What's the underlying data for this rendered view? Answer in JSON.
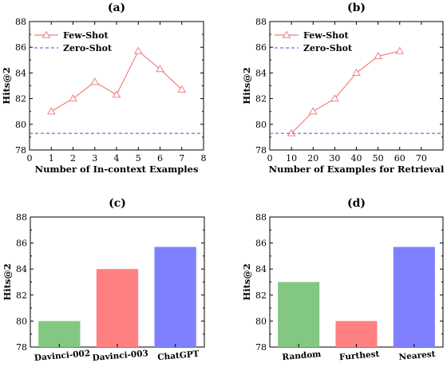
{
  "chart_data": [
    {
      "id": "a",
      "type": "line",
      "title": "(a)",
      "xlabel": "Number of In-context Examples",
      "ylabel": "Hits@2",
      "xlim": [
        0,
        8
      ],
      "ylim": [
        78,
        88
      ],
      "xticks": [
        0,
        1,
        2,
        3,
        4,
        5,
        6,
        7,
        8
      ],
      "yticks": [
        78,
        80,
        82,
        84,
        86,
        88
      ],
      "legend_position": "top-left",
      "series": [
        {
          "name": "Few-Shot",
          "style": "solid",
          "marker": "triangle",
          "color": "#f08080",
          "x": [
            1,
            2,
            3,
            4,
            5,
            6,
            7
          ],
          "y": [
            81.0,
            82.0,
            83.3,
            82.3,
            85.7,
            84.3,
            82.7
          ]
        },
        {
          "name": "Zero-Shot",
          "style": "dashed",
          "color": "#4a4ad6",
          "y_const": 79.3
        }
      ]
    },
    {
      "id": "b",
      "type": "line",
      "title": "(b)",
      "xlabel": "Number of Examples for Retrieval",
      "ylabel": "Hits@2",
      "xlim": [
        0,
        80
      ],
      "ylim": [
        78,
        88
      ],
      "xticks": [
        0,
        10,
        20,
        30,
        40,
        50,
        60,
        70
      ],
      "yticks": [
        78,
        80,
        82,
        84,
        86,
        88
      ],
      "legend_position": "top-left",
      "series": [
        {
          "name": "Few-Shot",
          "style": "solid",
          "marker": "triangle",
          "color": "#f08080",
          "x": [
            10,
            20,
            30,
            40,
            50,
            60
          ],
          "y": [
            79.3,
            81.0,
            82.0,
            84.0,
            85.3,
            85.7
          ]
        },
        {
          "name": "Zero-Shot",
          "style": "dashed",
          "color": "#4a4ad6",
          "y_const": 79.3
        }
      ]
    },
    {
      "id": "c",
      "type": "bar",
      "title": "(c)",
      "ylabel": "Hits@2",
      "ylim": [
        78,
        88
      ],
      "yticks": [
        78,
        80,
        82,
        84,
        86,
        88
      ],
      "categories": [
        "Davinci-002",
        "Davinci-003",
        "ChatGPT"
      ],
      "values": [
        80.0,
        84.0,
        85.7
      ],
      "colors": [
        "#82c882",
        "#ff8080",
        "#8080ff"
      ]
    },
    {
      "id": "d",
      "type": "bar",
      "title": "(d)",
      "ylabel": "Hits@2",
      "ylim": [
        78,
        88
      ],
      "yticks": [
        78,
        80,
        82,
        84,
        86,
        88
      ],
      "categories": [
        "Random",
        "Furthest",
        "Nearest"
      ],
      "values": [
        83.0,
        80.0,
        85.7
      ],
      "colors": [
        "#82c882",
        "#ff8080",
        "#8080ff"
      ]
    }
  ]
}
